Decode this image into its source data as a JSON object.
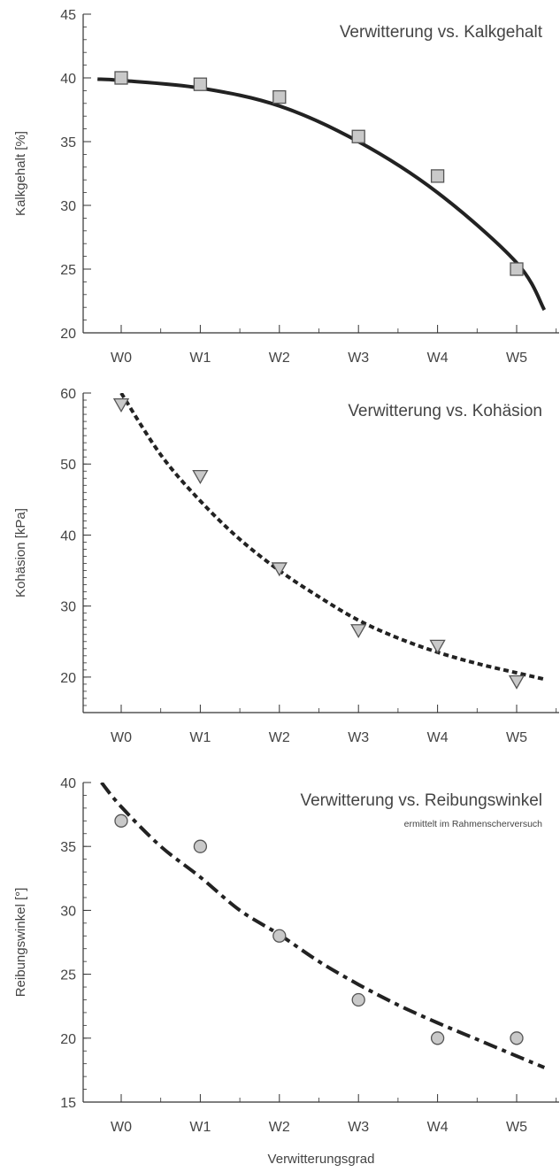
{
  "colors": {
    "axis": "#333333",
    "text": "#444444",
    "curve": "#222222",
    "marker_fill": "#c9c9c9",
    "marker_stroke": "#555555"
  },
  "chart_data": [
    {
      "type": "scatter",
      "title": "Verwitterung vs. Kalkgehalt",
      "subtitle": "",
      "xlabel": "",
      "ylabel": "Kalkgehalt [%]",
      "categories": [
        "W0",
        "W1",
        "W2",
        "W3",
        "W4",
        "W5"
      ],
      "ylim": [
        20,
        45
      ],
      "yticks": [
        20,
        25,
        30,
        35,
        40,
        45
      ],
      "grid": false,
      "marker": "square",
      "line_style": "solid",
      "values": [
        40.0,
        39.5,
        38.5,
        35.4,
        32.3,
        25.0
      ],
      "trend": {
        "x": [
          -0.3,
          0,
          1,
          2,
          3,
          4,
          5,
          5.35
        ],
        "y": [
          39.9,
          39.8,
          39.2,
          37.8,
          35.0,
          31.0,
          25.5,
          21.8
        ]
      }
    },
    {
      "type": "scatter",
      "title": "Verwitterung vs. Kohäsion",
      "subtitle": "",
      "xlabel": "",
      "ylabel": "Kohäsion [kPa]",
      "categories": [
        "W0",
        "W1",
        "W2",
        "W3",
        "W4",
        "W5"
      ],
      "ylim": [
        15,
        60
      ],
      "yticks": [
        20,
        30,
        40,
        50,
        60
      ],
      "grid": false,
      "marker": "triangle-down",
      "line_style": "dotted",
      "values": [
        58.3,
        48.2,
        35.2,
        26.5,
        24.3,
        19.3
      ],
      "trend": {
        "x": [
          0,
          0.5,
          1,
          1.5,
          2,
          2.5,
          3,
          3.5,
          4,
          4.5,
          5,
          5.35
        ],
        "y": [
          60.0,
          51.3,
          44.8,
          39.4,
          35.0,
          31.3,
          28.0,
          25.5,
          23.5,
          21.9,
          20.6,
          19.7
        ]
      }
    },
    {
      "type": "scatter",
      "title": "Verwitterung vs. Reibungswinkel",
      "subtitle": "ermittelt im Rahmenscherversuch",
      "xlabel": "Verwitterungsgrad",
      "ylabel": "Reibungswinkel [°]",
      "categories": [
        "W0",
        "W1",
        "W2",
        "W3",
        "W4",
        "W5"
      ],
      "ylim": [
        15,
        40
      ],
      "yticks": [
        15,
        20,
        25,
        30,
        35,
        40
      ],
      "grid": false,
      "marker": "circle",
      "line_style": "dashdot",
      "values": [
        37.0,
        35.0,
        28.0,
        23.0,
        20.0,
        20.0
      ],
      "trend": {
        "x": [
          -0.25,
          0,
          0.5,
          1,
          1.5,
          2,
          2.5,
          3,
          3.5,
          4,
          4.5,
          5,
          5.35
        ],
        "y": [
          40.0,
          38.1,
          35.0,
          32.6,
          30.0,
          28.1,
          26.0,
          24.2,
          22.6,
          21.2,
          19.9,
          18.6,
          17.7
        ]
      }
    }
  ]
}
